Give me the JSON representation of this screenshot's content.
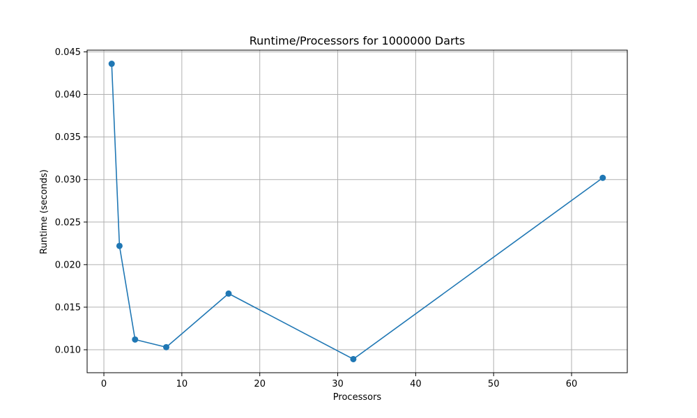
{
  "chart_data": {
    "type": "line",
    "title": "Runtime/Processors for 1000000 Darts",
    "xlabel": "Processors",
    "ylabel": "Runtime (seconds)",
    "xlim": [
      -2.15,
      67.15
    ],
    "ylim": [
      0.0073,
      0.0452
    ],
    "x_ticks": [
      0,
      10,
      20,
      30,
      40,
      50,
      60
    ],
    "x_tick_labels": [
      "0",
      "10",
      "20",
      "30",
      "40",
      "50",
      "60"
    ],
    "y_ticks": [
      0.01,
      0.015,
      0.02,
      0.025,
      0.03,
      0.035,
      0.04,
      0.045
    ],
    "y_tick_labels": [
      "0.010",
      "0.015",
      "0.020",
      "0.025",
      "0.030",
      "0.035",
      "0.040",
      "0.045"
    ],
    "grid": true,
    "series": [
      {
        "color": "#1f77b4",
        "marker": "circle",
        "x": [
          1,
          2,
          4,
          8,
          16,
          32,
          64
        ],
        "y": [
          0.0436,
          0.0222,
          0.0112,
          0.0103,
          0.0166,
          0.0089,
          0.0302
        ]
      }
    ]
  }
}
